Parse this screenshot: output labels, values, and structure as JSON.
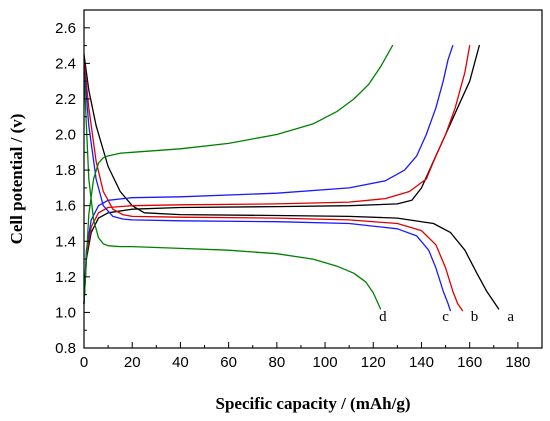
{
  "chart_data": {
    "type": "line",
    "title": "",
    "xlabel": "Specific capacity / (mAh/g)",
    "ylabel": "Cell potential / (v)",
    "xlim": [
      0,
      190
    ],
    "ylim": [
      0.8,
      2.7
    ],
    "xticks": [
      0,
      20,
      40,
      60,
      80,
      100,
      120,
      140,
      160,
      180
    ],
    "yticks": [
      0.8,
      1.0,
      1.2,
      1.4,
      1.6,
      1.8,
      2.0,
      2.2,
      2.4,
      2.6
    ],
    "xtick_labels": [
      "0",
      "20",
      "40",
      "60",
      "80",
      "100",
      "120",
      "140",
      "160",
      "180"
    ],
    "ytick_labels": [
      "0.8",
      "1.0",
      "1.2",
      "1.4",
      "1.6",
      "1.8",
      "2.0",
      "2.2",
      "2.4",
      "2.6"
    ],
    "grid": false,
    "legend": "none",
    "series": [
      {
        "label": "a",
        "color": "#000000",
        "charge": {
          "x": [
            0,
            1,
            3,
            6,
            10,
            20,
            40,
            80,
            110,
            130,
            136,
            140,
            145,
            150,
            155,
            160,
            164
          ],
          "y": [
            1.05,
            1.3,
            1.45,
            1.53,
            1.56,
            1.58,
            1.59,
            1.595,
            1.6,
            1.61,
            1.63,
            1.7,
            1.85,
            2.0,
            2.15,
            2.3,
            2.5
          ]
        },
        "discharge": {
          "x": [
            0,
            2,
            5,
            10,
            15,
            20,
            25,
            40,
            80,
            110,
            130,
            145,
            152,
            158,
            163,
            167,
            170,
            172
          ],
          "y": [
            2.45,
            2.25,
            2.05,
            1.82,
            1.68,
            1.6,
            1.56,
            1.55,
            1.545,
            1.54,
            1.53,
            1.5,
            1.45,
            1.35,
            1.22,
            1.12,
            1.06,
            1.02
          ]
        }
      },
      {
        "label": "b",
        "color": "#e00000",
        "charge": {
          "x": [
            0,
            1,
            3,
            6,
            10,
            20,
            40,
            80,
            110,
            125,
            135,
            142,
            146,
            150,
            154,
            158,
            160
          ],
          "y": [
            1.05,
            1.32,
            1.48,
            1.56,
            1.59,
            1.6,
            1.605,
            1.61,
            1.62,
            1.64,
            1.68,
            1.75,
            1.88,
            2.0,
            2.15,
            2.35,
            2.5
          ]
        },
        "discharge": {
          "x": [
            0,
            2,
            5,
            8,
            12,
            16,
            20,
            40,
            80,
            110,
            130,
            140,
            146,
            150,
            153,
            155,
            157
          ],
          "y": [
            2.42,
            2.15,
            1.85,
            1.68,
            1.58,
            1.55,
            1.54,
            1.535,
            1.53,
            1.52,
            1.5,
            1.46,
            1.38,
            1.25,
            1.12,
            1.05,
            1.01
          ]
        }
      },
      {
        "label": "c",
        "color": "#1a1aff",
        "charge": {
          "x": [
            0,
            1,
            3,
            6,
            10,
            20,
            40,
            80,
            110,
            125,
            133,
            138,
            142,
            146,
            149,
            151,
            153
          ],
          "y": [
            1.05,
            1.35,
            1.52,
            1.6,
            1.63,
            1.645,
            1.65,
            1.67,
            1.7,
            1.74,
            1.8,
            1.88,
            2.0,
            2.15,
            2.3,
            2.42,
            2.5
          ]
        },
        "discharge": {
          "x": [
            0,
            2,
            5,
            8,
            12,
            16,
            20,
            40,
            80,
            110,
            130,
            138,
            143,
            146,
            149,
            151,
            152
          ],
          "y": [
            2.38,
            2.05,
            1.75,
            1.6,
            1.54,
            1.525,
            1.52,
            1.515,
            1.51,
            1.5,
            1.47,
            1.43,
            1.35,
            1.25,
            1.12,
            1.05,
            1.01
          ]
        }
      },
      {
        "label": "d",
        "color": "#008000",
        "charge": {
          "x": [
            0,
            1,
            2,
            4,
            6,
            8,
            10,
            15,
            20,
            40,
            60,
            80,
            95,
            105,
            112,
            118,
            123,
            128
          ],
          "y": [
            1.05,
            1.3,
            1.55,
            1.75,
            1.84,
            1.87,
            1.88,
            1.895,
            1.9,
            1.92,
            1.95,
            2.0,
            2.06,
            2.13,
            2.2,
            2.28,
            2.38,
            2.5
          ]
        },
        "discharge": {
          "x": [
            0,
            1,
            2,
            4,
            6,
            8,
            10,
            15,
            20,
            40,
            60,
            80,
            95,
            105,
            112,
            117,
            120,
            122,
            123
          ],
          "y": [
            2.35,
            2.05,
            1.75,
            1.52,
            1.42,
            1.385,
            1.375,
            1.37,
            1.37,
            1.36,
            1.35,
            1.33,
            1.3,
            1.26,
            1.22,
            1.17,
            1.11,
            1.05,
            1.02
          ]
        }
      }
    ],
    "end_labels": [
      {
        "text": "a",
        "x": 177,
        "y": 0.98
      },
      {
        "text": "b",
        "x": 162,
        "y": 0.98
      },
      {
        "text": "c",
        "x": 150,
        "y": 0.98
      },
      {
        "text": "d",
        "x": 124,
        "y": 0.98
      }
    ]
  }
}
